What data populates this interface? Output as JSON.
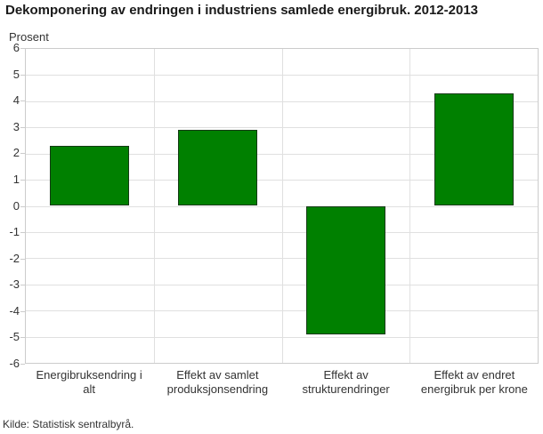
{
  "chart_data": {
    "type": "bar",
    "title": "Dekomponering av endringen i industriens samlede energibruk. 2012-2013",
    "categories": [
      "Energibruksendring i alt",
      "Effekt av samlet produksjonsendring",
      "Effekt av strukturendringer",
      "Effekt av endret energibruk per krone"
    ],
    "values": [
      2.3,
      2.9,
      -4.9,
      4.3
    ],
    "xlabel": "",
    "ylabel": "Prosent",
    "ylim": [
      -6,
      6
    ],
    "ytick_step": 1,
    "grid": true,
    "legend": "none",
    "source": "Kilde: Statistisk sentralbyrå.",
    "colors": {
      "bar_fill": "#008000",
      "bar_border": "#153a15",
      "grid_line": "#e0e0e0",
      "plot_border": "#cccccc",
      "tick_mark": "#cccccc",
      "title_text": "#1a1a1a",
      "axis_text": "#333333"
    }
  }
}
